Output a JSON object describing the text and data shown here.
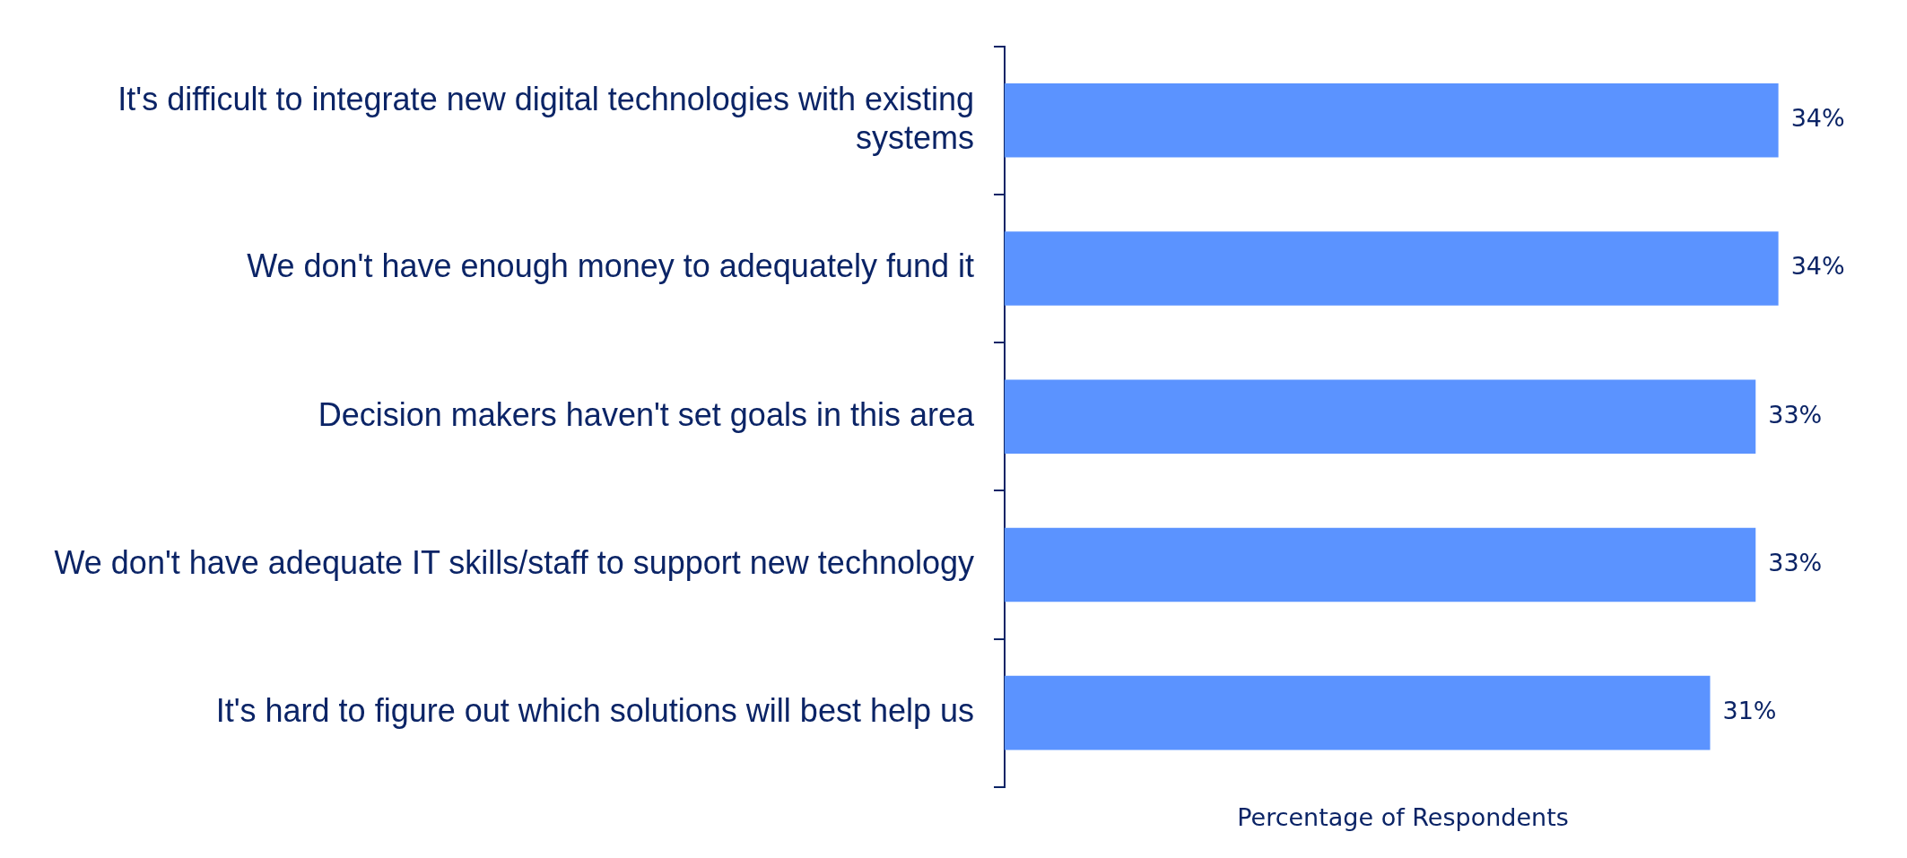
{
  "chart_data": {
    "type": "bar",
    "orientation": "horizontal",
    "xlabel": "Percentage of Respondents",
    "categories": [
      "It's difficult to integrate new digital technologies with existing systems",
      "We don't have enough money to adequately fund it",
      "Decision makers haven't set goals in this area",
      "We don't have adequate IT skills/staff to support new technology",
      "It's hard to figure out which solutions will best help us"
    ],
    "values": [
      34,
      34,
      33,
      33,
      31
    ],
    "value_labels": [
      "34%",
      "34%",
      "33%",
      "33%",
      "31%"
    ],
    "color": "#5b93ff",
    "grid": false,
    "legend": false
  }
}
